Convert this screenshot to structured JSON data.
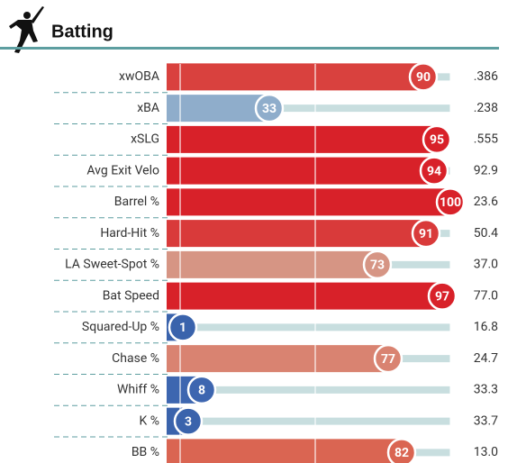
{
  "chart_data": {
    "type": "bar",
    "title": "Batting",
    "categories": [
      "xwOBA",
      "xBA",
      "xSLG",
      "Avg Exit Velo",
      "Barrel %",
      "Hard-Hit %",
      "LA Sweet-Spot %",
      "Bat Speed",
      "Squared-Up %",
      "Chase %",
      "Whiff %",
      "K %",
      "BB %"
    ],
    "values": [
      90,
      33,
      95,
      94,
      100,
      91,
      73,
      97,
      1,
      77,
      8,
      3,
      82
    ],
    "colors": [
      "#d9413e",
      "#8fadcb",
      "#d82129",
      "#d82129",
      "#d82129",
      "#d93a3a",
      "#d69584",
      "#d82129",
      "#3a63ac",
      "#d98371",
      "#3d66b0",
      "#3a63ac",
      "#da6552"
    ],
    "stat_labels": [
      ".386",
      ".238",
      ".555",
      "92.9",
      "23.6",
      "50.4",
      "37.0",
      "77.0",
      "16.8",
      "24.7",
      "33.3",
      "33.7",
      "13.0"
    ],
    "xlim": [
      0,
      100
    ],
    "grid_values": [
      0,
      50,
      100
    ]
  }
}
